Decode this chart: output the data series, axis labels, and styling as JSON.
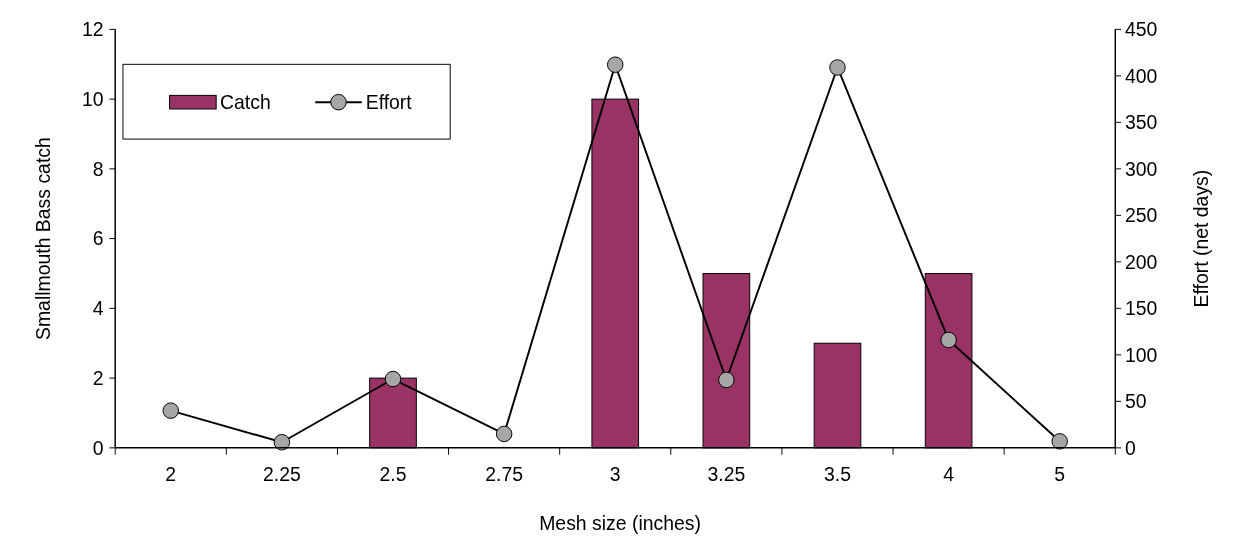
{
  "chart_data": {
    "type": "bar",
    "xlabel": "Mesh size (inches)",
    "ylabel": "Smallmouth Bass catch",
    "y2label": "Effort (net days)",
    "categories": [
      "2",
      "2.25",
      "2.5",
      "2.75",
      "3",
      "3.25",
      "3.5",
      "4",
      "5"
    ],
    "series": [
      {
        "name": "Catch",
        "color": "#993366",
        "values": [
          0,
          0,
          2,
          0,
          10,
          5,
          3,
          5,
          0
        ]
      },
      {
        "name": "Effort",
        "type": "line",
        "axis": "y2",
        "color": "#000000",
        "marker": "circle",
        "values": [
          40,
          6,
          74,
          15,
          412,
          73,
          409,
          116,
          7
        ]
      }
    ],
    "ylim": [
      0,
      12
    ],
    "yticks": [
      0,
      2,
      4,
      6,
      8,
      10,
      12
    ],
    "y2lim": [
      0,
      450
    ],
    "y2ticks": [
      0,
      50,
      100,
      150,
      200,
      250,
      300,
      350,
      400,
      450
    ],
    "legend": "top left",
    "grid": false
  }
}
